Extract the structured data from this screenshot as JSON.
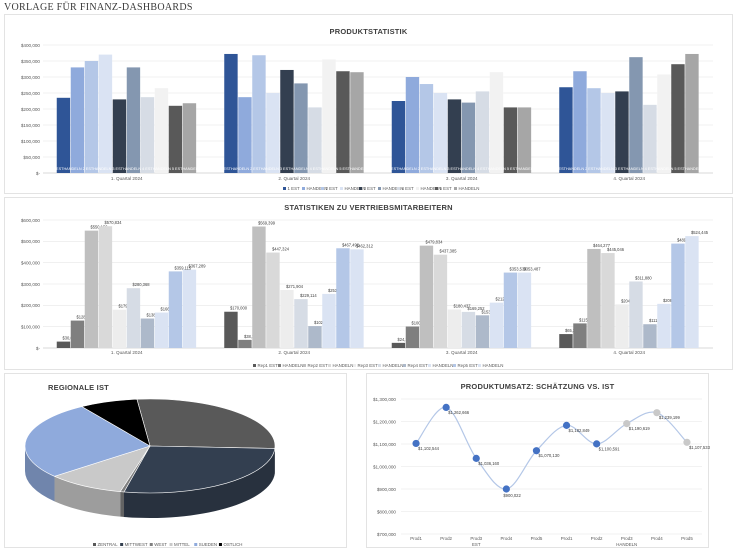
{
  "page_title": "VORLAGE FÜR FINANZ-DASHBOARDS",
  "chart_data": [
    {
      "id": "produktstatistik",
      "type": "bar",
      "title": "PRODUKTSTATISTIK",
      "categories": [
        "1. Quartal 2024",
        "2. Quartal 2024",
        "3. Quartal 2024",
        "4. Quartal 2024"
      ],
      "yticks": [
        "$-",
        "$50,000",
        "$100,000",
        "$150,000",
        "$200,000",
        "$250,000",
        "$300,000",
        "$350,000",
        "$400,000"
      ],
      "ylim": [
        0,
        400000
      ],
      "bar_label": "1 ESTHANDELN 2 ESTHANDELN 3 ESTHANDELN 4 ESTHANDELN 5 ESTHANDELN",
      "legend": [
        "1 EST",
        "HANDELN",
        "2 EST",
        "HANDELN",
        "3 EST",
        "HANDELN",
        "4 EST",
        "HANDELN",
        "5 EST",
        "HANDELN"
      ],
      "colors": [
        "#2f5597",
        "#8faadc",
        "#b4c7e7",
        "#dae3f3",
        "#333f50",
        "#8497b0",
        "#d6dce5",
        "#f2f2f2",
        "#595959",
        "#a6a6a6"
      ],
      "series": [
        {
          "values": [
            235000,
            372000,
            225000,
            268000
          ]
        },
        {
          "values": [
            330000,
            237000,
            300000,
            318000
          ]
        },
        {
          "values": [
            350000,
            368000,
            278000,
            265000
          ]
        },
        {
          "values": [
            370000,
            250000,
            250000,
            250000
          ]
        },
        {
          "values": [
            230000,
            322000,
            230000,
            255000
          ]
        },
        {
          "values": [
            330000,
            280000,
            220000,
            362000
          ]
        },
        {
          "values": [
            237000,
            205000,
            255000,
            213000
          ]
        },
        {
          "values": [
            265000,
            355000,
            315000,
            308000
          ]
        },
        {
          "values": [
            210000,
            318000,
            205000,
            340000
          ]
        },
        {
          "values": [
            218000,
            315000,
            205000,
            372000
          ]
        }
      ]
    },
    {
      "id": "vertriebsmitarbeiter",
      "type": "bar",
      "title": "STATISTIKEN ZU VERTRIEBSMITARBEITERN",
      "categories": [
        "1. Quartal 2024",
        "2. Quartal 2024",
        "3. Quartal 2024",
        "4. Quartal 2024"
      ],
      "yticks": [
        "$-",
        "$100,000",
        "$200,000",
        "$300,000",
        "$400,000",
        "$500,000",
        "$600,000"
      ],
      "ylim": [
        0,
        600000
      ],
      "legend": [
        "Rep1 EST",
        "HANDELN",
        "Rep2 EST",
        "HANDELN",
        "Rep3 EST",
        "HANDELN",
        "Rep4 EST",
        "HANDELN",
        "Rep5 EST",
        "HANDELN"
      ],
      "colors": [
        "#595959",
        "#7f7f7f",
        "#bfbfbf",
        "#d9d9d9",
        "#ededed",
        "#d6dce5",
        "#adb9ca",
        "#dae3f3",
        "#b4c7e7",
        "#dae3f3"
      ],
      "series": [
        {
          "values": [
            30043,
            170000,
            24133,
            65309
          ],
          "labels": [
            "$30,043",
            "$170,000",
            "$24,133",
            "$65,309"
          ]
        },
        {
          "values": [
            128554,
            38138,
            100822,
            115337
          ],
          "labels": [
            "$128,554",
            "$38,138",
            "$100,822",
            "$115,337"
          ]
        },
        {
          "values": [
            550156,
            569399,
            479834,
            464277
          ],
          "labels": [
            "$550,156",
            "$569,399",
            "$479,834",
            "$464,277"
          ]
        },
        {
          "values": [
            570834,
            447324,
            437385,
            445046
          ],
          "labels": [
            "$570,834",
            "$447,324",
            "$437,385",
            "$445,046"
          ]
        },
        {
          "values": [
            179432,
            271904,
            180437,
            204328
          ],
          "labels": [
            "$179,432",
            "$271,904",
            "$180,437",
            "$204,328"
          ]
        },
        {
          "values": [
            280368,
            229114,
            169252,
            311880
          ],
          "labels": [
            "$280,368",
            "$229,114",
            "$169,252",
            "$311,880"
          ]
        },
        {
          "values": [
            138179,
            102723,
            153279,
            111447
          ],
          "labels": [
            "$138,179",
            "$102,723",
            "$153,279",
            "$111,447"
          ]
        },
        {
          "values": [
            166070,
            253563,
            212566,
            206970
          ],
          "labels": [
            "$166,070",
            "$253,563",
            "$212,566",
            "$206,970"
          ]
        },
        {
          "values": [
            359115,
            467492,
            353534,
            489345
          ],
          "labels": [
            "$359,115",
            "$467,492",
            "$353,534",
            "$489,345"
          ]
        },
        {
          "values": [
            367289,
            462312,
            353487,
            524445
          ],
          "labels": [
            "$367,289",
            "$462,312",
            "$353,487",
            "$524,445"
          ]
        }
      ]
    },
    {
      "id": "regionale",
      "type": "pie",
      "title": "REGIONALE IST",
      "labels": [
        "ZENTRAL",
        "MITTWEST",
        "WEST",
        "MITTEL",
        "SUEDEN",
        "OST"
      ],
      "legend": [
        "ZENTRAL",
        "MITTWEST",
        "WEST",
        "MITTEL",
        "SUEDEN",
        "OSTLICH"
      ],
      "values": [
        27.5,
        27.5,
        0.5,
        10,
        27,
        7.5
      ],
      "colors": [
        "#595959",
        "#333f50",
        "#7f7f7f",
        "#c9c9c9",
        "#8faadc",
        "#000000"
      ]
    },
    {
      "id": "produktumsatz",
      "type": "line",
      "title": "PRODUKTUMSATZ: SCHÄTZUNG VS. IST",
      "yticks": [
        "$700,000",
        "$800,000",
        "$900,000",
        "$1,000,000",
        "$1,100,000",
        "$1,200,000",
        "$1,300,000"
      ],
      "ylim": [
        700000,
        1300000
      ],
      "x": [
        "Prod1",
        "Prod2",
        "Prod3",
        "Prod4",
        "Prod5",
        "Prod1",
        "Prod2",
        "Prod3",
        "Prod4",
        "Prod5"
      ],
      "group_labels": [
        "EST",
        "HANDELN"
      ],
      "values": [
        1102544,
        1262666,
        1036160,
        900022,
        1070130,
        1182849,
        1100591,
        1190619,
        1239199,
        1107533
      ],
      "labels": [
        "$1,102,544",
        "$1,262,666",
        "$1,036,160",
        "$900,022",
        "$1,070,130",
        "$1,182,849",
        "$1,100,591",
        "$1,190,619",
        "$1,239,199",
        "$1,107,533"
      ],
      "colors": [
        "#4472c4",
        "#4472c4",
        "#4472c4",
        "#4472c4",
        "#4472c4",
        "#4472c4",
        "#4472c4",
        "#c9c9c9",
        "#c9c9c9",
        "#c9c9c9"
      ]
    }
  ]
}
